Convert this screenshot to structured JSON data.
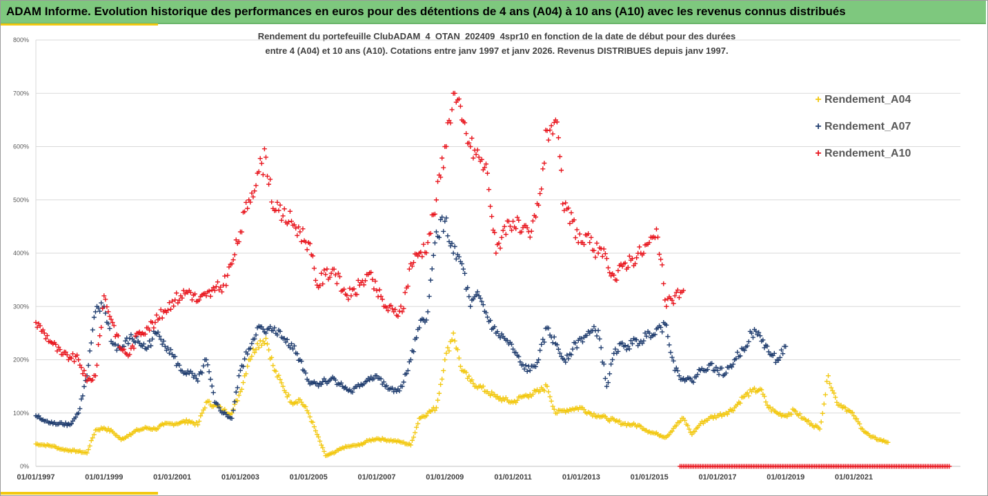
{
  "banner": {
    "title": "ADAM Informe. Evolution historique des performances en euros pour des détentions de 4 ans (A04) à 10 ans (A10) avec les revenus connus distribués"
  },
  "colors": {
    "banner_bg": "#7ec87e",
    "accent": "#f2c811",
    "A04": "#f2c811",
    "A07": "#1f3c6e",
    "A10": "#e8141c"
  },
  "chart_data": {
    "type": "scatter",
    "title_line1": "Rendement du portefeuille ClubADAM_4_OTAN_202409_4spr10  en fonction de la date de début pour des durées",
    "title_line2": "entre 4 (A04) et 10 ans (A10). Cotations entre janv 1997 et janv 2026. Revenus DISTRIBUES depuis janv 1997.",
    "xlabel": "",
    "ylabel": "",
    "x_range": [
      1997.0,
      2023.8
    ],
    "ylim": [
      0,
      800
    ],
    "y_ticks": [
      "0%",
      "100%",
      "200%",
      "300%",
      "400%",
      "500%",
      "600%",
      "700%",
      "800%"
    ],
    "x_ticks": [
      {
        "year": 1997,
        "label": "01/01/1997"
      },
      {
        "year": 1999,
        "label": "01/01/1999"
      },
      {
        "year": 2001,
        "label": "01/01/2001"
      },
      {
        "year": 2003,
        "label": "01/01/2003"
      },
      {
        "year": 2005,
        "label": "01/01/2005"
      },
      {
        "year": 2007,
        "label": "01/01/2007"
      },
      {
        "year": 2009,
        "label": "01/01/2009"
      },
      {
        "year": 2011,
        "label": "01/01/2011"
      },
      {
        "year": 2013,
        "label": "01/01/2013"
      },
      {
        "year": 2015,
        "label": "01/01/2015"
      },
      {
        "year": 2017,
        "label": "01/01/2017"
      },
      {
        "year": 2019,
        "label": "01/01/2019"
      },
      {
        "year": 2021,
        "label": "01/01/2021"
      }
    ],
    "grid": "horizontal",
    "marker": "+",
    "legend_position": "right",
    "series": [
      {
        "name": "Rendement_A04",
        "color": "#f2c811",
        "x": [
          1997.0,
          1997.25,
          1997.5,
          1997.75,
          1998.0,
          1998.25,
          1998.5,
          1998.75,
          1999.0,
          1999.25,
          1999.5,
          1999.75,
          2000.0,
          2000.25,
          2000.5,
          2000.75,
          2001.0,
          2001.25,
          2001.5,
          2001.75,
          2002.0,
          2002.25,
          2002.5,
          2002.75,
          2003.0,
          2003.25,
          2003.5,
          2003.75,
          2004.0,
          2004.25,
          2004.5,
          2004.75,
          2005.0,
          2005.25,
          2005.5,
          2005.75,
          2006.0,
          2006.25,
          2006.5,
          2006.75,
          2007.0,
          2007.25,
          2007.5,
          2007.75,
          2008.0,
          2008.25,
          2008.5,
          2008.75,
          2009.0,
          2009.25,
          2009.5,
          2009.75,
          2010.0,
          2010.25,
          2010.5,
          2010.75,
          2011.0,
          2011.25,
          2011.5,
          2011.75,
          2012.0,
          2012.25,
          2012.5,
          2012.75,
          2013.0,
          2013.25,
          2013.5,
          2013.75,
          2014.0,
          2014.25,
          2014.5,
          2014.75,
          2015.0,
          2015.25,
          2015.5,
          2015.75,
          2016.0,
          2016.25,
          2016.5,
          2016.75,
          2017.0,
          2017.25,
          2017.5,
          2017.75,
          2018.0,
          2018.25,
          2018.5,
          2018.75,
          2019.0,
          2019.25,
          2019.5,
          2019.75,
          2020.0,
          2020.25,
          2020.5,
          2020.75,
          2021.0,
          2021.25,
          2021.5,
          2021.75,
          2022.0
        ],
        "values": [
          42,
          40,
          38,
          32,
          30,
          28,
          25,
          68,
          72,
          65,
          50,
          60,
          68,
          72,
          70,
          78,
          80,
          82,
          85,
          78,
          120,
          115,
          105,
          100,
          140,
          200,
          230,
          240,
          180,
          150,
          120,
          125,
          100,
          60,
          20,
          25,
          35,
          38,
          40,
          48,
          52,
          50,
          48,
          45,
          40,
          90,
          100,
          110,
          200,
          250,
          180,
          160,
          150,
          140,
          130,
          125,
          120,
          130,
          135,
          140,
          150,
          100,
          105,
          108,
          110,
          100,
          95,
          90,
          85,
          80,
          78,
          75,
          65,
          60,
          55,
          75,
          90,
          60,
          80,
          90,
          95,
          100,
          110,
          130,
          140,
          145,
          110,
          100,
          95,
          105,
          90,
          80,
          70,
          170,
          120,
          110,
          95,
          70,
          55,
          50,
          45
        ]
      },
      {
        "name": "Rendement_A07",
        "color": "#1f3c6e",
        "x": [
          1997.0,
          1997.25,
          1997.5,
          1997.75,
          1998.0,
          1998.25,
          1998.5,
          1998.75,
          1999.0,
          1999.25,
          1999.5,
          1999.75,
          2000.0,
          2000.25,
          2000.5,
          2000.75,
          2001.0,
          2001.25,
          2001.5,
          2001.75,
          2002.0,
          2002.25,
          2002.5,
          2002.75,
          2003.0,
          2003.25,
          2003.5,
          2003.75,
          2004.0,
          2004.25,
          2004.5,
          2004.75,
          2005.0,
          2005.25,
          2005.5,
          2005.75,
          2006.0,
          2006.25,
          2006.5,
          2006.75,
          2007.0,
          2007.25,
          2007.5,
          2007.75,
          2008.0,
          2008.25,
          2008.5,
          2008.75,
          2009.0,
          2009.25,
          2009.5,
          2009.75,
          2010.0,
          2010.25,
          2010.5,
          2010.75,
          2011.0,
          2011.25,
          2011.5,
          2011.75,
          2012.0,
          2012.25,
          2012.5,
          2012.75,
          2013.0,
          2013.25,
          2013.5,
          2013.75,
          2014.0,
          2014.25,
          2014.5,
          2014.75,
          2015.0,
          2015.25,
          2015.5,
          2015.75,
          2016.0,
          2016.25,
          2016.5,
          2016.75,
          2017.0,
          2017.25,
          2017.5,
          2017.75,
          2018.0,
          2018.25,
          2018.5,
          2018.75,
          2019.0
        ],
        "values": [
          95,
          85,
          80,
          82,
          78,
          100,
          170,
          290,
          300,
          230,
          220,
          240,
          235,
          220,
          250,
          235,
          210,
          180,
          175,
          160,
          200,
          120,
          100,
          90,
          180,
          220,
          260,
          250,
          260,
          240,
          230,
          200,
          160,
          155,
          160,
          165,
          150,
          140,
          150,
          165,
          170,
          150,
          140,
          150,
          200,
          260,
          290,
          440,
          460,
          400,
          380,
          300,
          320,
          280,
          250,
          240,
          220,
          190,
          180,
          200,
          260,
          230,
          200,
          220,
          240,
          250,
          255,
          150,
          220,
          225,
          230,
          235,
          250,
          260,
          265,
          180,
          165,
          160,
          180,
          190,
          180,
          175,
          200,
          220,
          250,
          245,
          215,
          200,
          225
        ]
      },
      {
        "name": "Rendement_A10",
        "color": "#e8141c",
        "x": [
          1997.0,
          1997.25,
          1997.5,
          1997.75,
          1998.0,
          1998.25,
          1998.5,
          1998.75,
          1999.0,
          1999.25,
          1999.5,
          1999.75,
          2000.0,
          2000.25,
          2000.5,
          2000.75,
          2001.0,
          2001.25,
          2001.5,
          2001.75,
          2002.0,
          2002.25,
          2002.5,
          2002.75,
          2003.0,
          2003.25,
          2003.5,
          2003.75,
          2004.0,
          2004.25,
          2004.5,
          2004.75,
          2005.0,
          2005.25,
          2005.5,
          2005.75,
          2006.0,
          2006.25,
          2006.5,
          2006.75,
          2007.0,
          2007.25,
          2007.5,
          2007.75,
          2008.0,
          2008.25,
          2008.5,
          2008.75,
          2009.0,
          2009.25,
          2009.5,
          2009.75,
          2010.0,
          2010.25,
          2010.5,
          2010.75,
          2011.0,
          2011.25,
          2011.5,
          2011.75,
          2012.0,
          2012.25,
          2012.5,
          2012.75,
          2013.0,
          2013.25,
          2013.5,
          2013.75,
          2014.0,
          2014.25,
          2014.5,
          2014.75,
          2015.0,
          2015.25,
          2015.5,
          2015.75,
          2016.0
        ],
        "values": [
          270,
          250,
          230,
          210,
          205,
          200,
          160,
          170,
          320,
          270,
          220,
          210,
          250,
          260,
          270,
          290,
          310,
          320,
          330,
          310,
          320,
          330,
          340,
          380,
          440,
          500,
          550,
          580,
          480,
          470,
          460,
          440,
          420,
          340,
          360,
          370,
          330,
          320,
          340,
          360,
          330,
          300,
          290,
          290,
          380,
          400,
          420,
          500,
          600,
          700,
          650,
          600,
          580,
          550,
          400,
          450,
          460,
          440,
          430,
          490,
          630,
          650,
          480,
          460,
          420,
          420,
          400,
          390,
          350,
          380,
          390,
          400,
          420,
          430,
          300,
          320,
          330
        ]
      }
    ],
    "zero_marker_series": {
      "name": "Rendement_A10",
      "x_start": 2015.9,
      "x_end": 2023.8,
      "value": 0
    }
  }
}
